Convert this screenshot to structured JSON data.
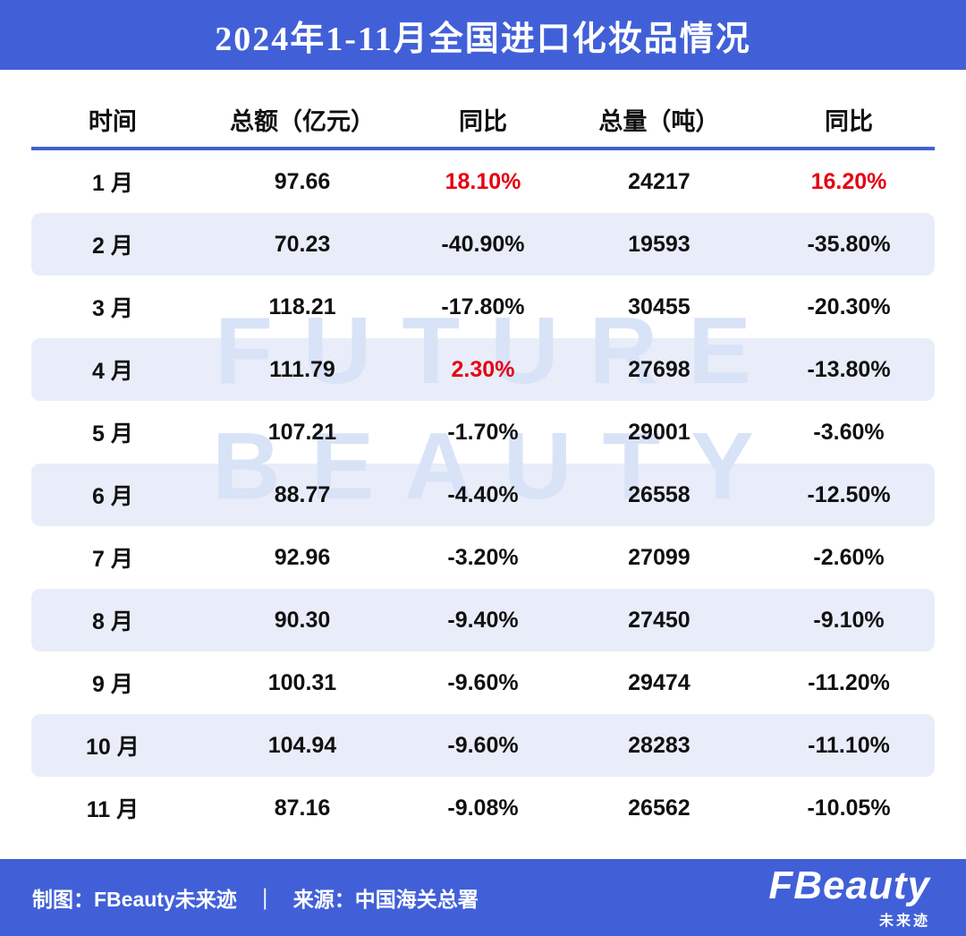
{
  "title": "2024年1-11月全国进口化妆品情况",
  "watermark": {
    "line1": "FUTURE",
    "line2": "BEAUTY"
  },
  "footer": {
    "credit": "制图：FBeauty未来迹",
    "separator": "｜",
    "source": "来源：中国海关总署",
    "logo_main": "FBeauty",
    "logo_sub": "未来迹"
  },
  "colors": {
    "primary": "#4160D8",
    "row-alt": "#E8EDF9",
    "red": "#E60012",
    "watermark": "#D9E3F7"
  },
  "chart_data": {
    "type": "table",
    "title": "2024年1-11月全国进口化妆品情况",
    "columns": [
      "时间",
      "总额（亿元）",
      "同比",
      "总量（吨）",
      "同比"
    ],
    "rows": [
      {
        "cells": [
          "1 月",
          "97.66",
          "18.10%",
          "24217",
          "16.20%"
        ],
        "red": [
          2,
          4
        ]
      },
      {
        "cells": [
          "2 月",
          "70.23",
          "-40.90%",
          "19593",
          "-35.80%"
        ],
        "red": []
      },
      {
        "cells": [
          "3 月",
          "118.21",
          "-17.80%",
          "30455",
          "-20.30%"
        ],
        "red": []
      },
      {
        "cells": [
          "4 月",
          "111.79",
          "2.30%",
          "27698",
          "-13.80%"
        ],
        "red": [
          2
        ]
      },
      {
        "cells": [
          "5 月",
          "107.21",
          "-1.70%",
          "29001",
          "-3.60%"
        ],
        "red": []
      },
      {
        "cells": [
          "6 月",
          "88.77",
          "-4.40%",
          "26558",
          "-12.50%"
        ],
        "red": []
      },
      {
        "cells": [
          "7 月",
          "92.96",
          "-3.20%",
          "27099",
          "-2.60%"
        ],
        "red": []
      },
      {
        "cells": [
          "8 月",
          "90.30",
          "-9.40%",
          "27450",
          "-9.10%"
        ],
        "red": []
      },
      {
        "cells": [
          "9 月",
          "100.31",
          "-9.60%",
          "29474",
          "-11.20%"
        ],
        "red": []
      },
      {
        "cells": [
          "10 月",
          "104.94",
          "-9.60%",
          "28283",
          "-11.10%"
        ],
        "red": []
      },
      {
        "cells": [
          "11 月",
          "87.16",
          "-9.08%",
          "26562",
          "-10.05%"
        ],
        "red": []
      }
    ]
  }
}
